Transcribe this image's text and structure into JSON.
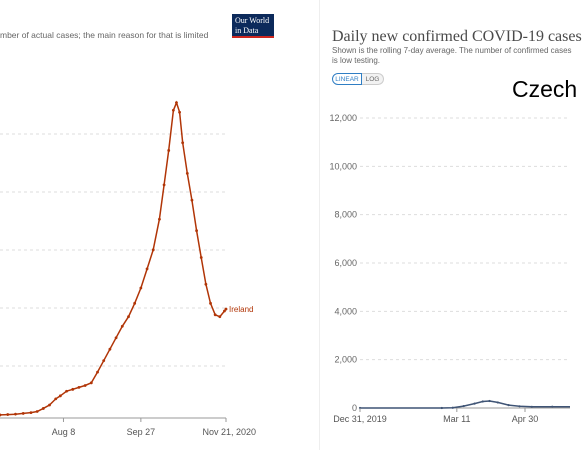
{
  "left_chart": {
    "subtitle": "mber of actual cases; the main reason for that is limited",
    "logo": {
      "line1": "Our World",
      "line2": "in Data"
    }
  },
  "right_chart": {
    "title": "Daily new confirmed COVID-19 cases",
    "subtitle": "Shown is the rolling 7-day average. The number of confirmed cases is low testing.",
    "toggle_linear": "LINEAR",
    "toggle_log": "LOG",
    "overlay_text": "Czech"
  },
  "chart_data": [
    {
      "type": "line",
      "x_tick_labels": [
        "Aug 8",
        "Sep 27",
        "Nov 21, 2020"
      ],
      "grid": true,
      "series": [
        {
          "name": "Ireland",
          "color": "#b13507",
          "points": [
            [
              "2020-06-28",
              8
            ],
            [
              "2020-07-03",
              9
            ],
            [
              "2020-07-08",
              10
            ],
            [
              "2020-07-13",
              12
            ],
            [
              "2020-07-18",
              14
            ],
            [
              "2020-07-22",
              17
            ],
            [
              "2020-07-26",
              25
            ],
            [
              "2020-07-30",
              34
            ],
            [
              "2020-08-03",
              50
            ],
            [
              "2020-08-06",
              58
            ],
            [
              "2020-08-10",
              70
            ],
            [
              "2020-08-14",
              75
            ],
            [
              "2020-08-18",
              80
            ],
            [
              "2020-08-22",
              85
            ],
            [
              "2020-08-26",
              92
            ],
            [
              "2020-08-30",
              120
            ],
            [
              "2020-09-03",
              150
            ],
            [
              "2020-09-07",
              180
            ],
            [
              "2020-09-11",
              210
            ],
            [
              "2020-09-15",
              240
            ],
            [
              "2020-09-19",
              265
            ],
            [
              "2020-09-23",
              300
            ],
            [
              "2020-09-27",
              340
            ],
            [
              "2020-10-01",
              390
            ],
            [
              "2020-10-05",
              440
            ],
            [
              "2020-10-09",
              520
            ],
            [
              "2020-10-12",
              610
            ],
            [
              "2020-10-15",
              700
            ],
            [
              "2020-10-18",
              805
            ],
            [
              "2020-10-20",
              825
            ],
            [
              "2020-10-22",
              800
            ],
            [
              "2020-10-24",
              720
            ],
            [
              "2020-10-27",
              640
            ],
            [
              "2020-10-30",
              570
            ],
            [
              "2020-11-02",
              490
            ],
            [
              "2020-11-05",
              420
            ],
            [
              "2020-11-08",
              350
            ],
            [
              "2020-11-11",
              300
            ],
            [
              "2020-11-14",
              270
            ],
            [
              "2020-11-17",
              265
            ],
            [
              "2020-11-20",
              280
            ],
            [
              "2020-11-21",
              285
            ]
          ]
        }
      ]
    },
    {
      "type": "line",
      "x_tick_labels": [
        "Dec 31, 2019",
        "Mar 11",
        "Apr 30"
      ],
      "y_ticks": [
        0,
        2000,
        4000,
        6000,
        8000,
        10000,
        12000
      ],
      "ylim": [
        0,
        12000
      ],
      "grid": true,
      "series": [
        {
          "color": "#3f5475",
          "points": [
            [
              "2019-12-31",
              0
            ],
            [
              "2020-02-29",
              0
            ],
            [
              "2020-03-08",
              10
            ],
            [
              "2020-03-16",
              80
            ],
            [
              "2020-03-24",
              180
            ],
            [
              "2020-03-30",
              270
            ],
            [
              "2020-04-04",
              290
            ],
            [
              "2020-04-10",
              230
            ],
            [
              "2020-04-18",
              120
            ],
            [
              "2020-04-26",
              70
            ],
            [
              "2020-05-05",
              50
            ],
            [
              "2020-05-20",
              55
            ]
          ]
        }
      ]
    }
  ]
}
